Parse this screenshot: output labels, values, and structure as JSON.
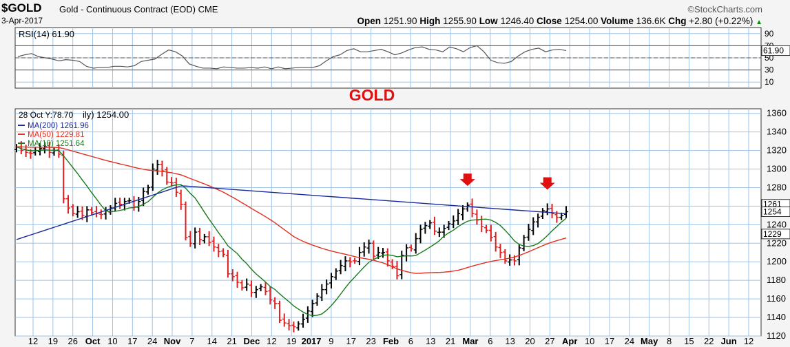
{
  "header": {
    "symbol": "$GOLD",
    "description": "Gold - Continuous Contract (EOD)",
    "exchange": "CME",
    "date": "3-Apr-2017",
    "brand": "©StockCharts.com",
    "open_label": "Open",
    "open": "1251.90",
    "high_label": "High",
    "high": "1255.90",
    "low_label": "Low",
    "low": "1246.40",
    "close_label": "Close",
    "close": "1254.00",
    "volume_label": "Volume",
    "volume": "136.6K",
    "chg_label": "Chg",
    "chg": "+2.80 (+0.22%)",
    "chg_icon": "up-triangle-icon"
  },
  "chart_data": {
    "type": "candlestick",
    "colors": {
      "up": "#000000",
      "down": "#e02020",
      "ma200": "#1a2a9a",
      "ma50": "#e03020",
      "ma10": "#1a7a1a",
      "rsi": "#555555",
      "rsi_fill": "#c8b48c",
      "annotation": "#e01010",
      "grid": "#9ec3e6"
    },
    "rsi": {
      "label": "RSI(14) 61.90",
      "current": 61.9,
      "ylim": [
        0,
        100
      ],
      "levels": [
        70,
        30
      ],
      "center": 50,
      "ticks": [
        90,
        70,
        50,
        30,
        10
      ],
      "series": [
        52,
        55,
        57,
        52,
        50,
        48,
        45,
        47,
        46,
        44,
        36,
        33,
        34,
        34,
        36,
        36,
        35,
        37,
        44,
        46,
        48,
        56,
        63,
        60,
        53,
        40,
        36,
        33,
        33,
        32,
        35,
        34,
        33,
        33,
        34,
        33,
        35,
        32,
        35,
        32,
        33,
        34,
        34,
        34,
        37,
        45,
        52,
        55,
        62,
        65,
        60,
        60,
        62,
        64,
        60,
        55,
        58,
        63,
        67,
        68,
        64,
        63,
        60,
        68,
        65,
        60,
        67,
        70,
        60,
        46,
        42,
        41,
        44,
        53,
        60,
        64,
        66,
        60,
        63,
        64,
        62
      ]
    },
    "annotation": "GOLD",
    "price": {
      "current_label": "1254.00",
      "ylim": [
        1120,
        1365
      ],
      "ticks": [
        1360,
        1340,
        1320,
        1300,
        1280,
        1260,
        1240,
        1220,
        1200,
        1180,
        1160,
        1140,
        1120
      ],
      "tooltip": "28 Oct Y:78.70",
      "legend": [
        {
          "name": "MA(200) 1261.96",
          "value": 1261.96,
          "color": "#1a2a9a"
        },
        {
          "name": "MA(50) 1229.81",
          "value": 1229.81,
          "color": "#e03020"
        },
        {
          "name": "MA(10) 1251.64",
          "value": 1251.64,
          "color": "#1a7a1a"
        }
      ],
      "tags": [
        {
          "label": "1261",
          "value": 1262
        },
        {
          "label": "1254",
          "value": 1254
        },
        {
          "label": "1229",
          "value": 1230
        }
      ],
      "closes": [
        1324,
        1320,
        1318,
        1317,
        1320,
        1322,
        1324,
        1318,
        1320,
        1316,
        1268,
        1258,
        1252,
        1254,
        1250,
        1256,
        1253,
        1252,
        1251,
        1255,
        1258,
        1263,
        1262,
        1265,
        1266,
        1259,
        1265,
        1276,
        1280,
        1300,
        1305,
        1298,
        1286,
        1285,
        1275,
        1262,
        1226,
        1220,
        1232,
        1224,
        1227,
        1221,
        1216,
        1211,
        1208,
        1187,
        1184,
        1178,
        1172,
        1176,
        1167,
        1170,
        1173,
        1168,
        1159,
        1155,
        1137,
        1134,
        1131,
        1130,
        1133,
        1138,
        1147,
        1155,
        1163,
        1170,
        1176,
        1184,
        1190,
        1196,
        1201,
        1200,
        1201,
        1210,
        1216,
        1220,
        1206,
        1210,
        1210,
        1201,
        1195,
        1185,
        1207,
        1215,
        1214,
        1225,
        1235,
        1239,
        1242,
        1233,
        1232,
        1236,
        1241,
        1244,
        1252,
        1257,
        1261,
        1252,
        1245,
        1238,
        1234,
        1226,
        1216,
        1210,
        1201,
        1202,
        1201,
        1215,
        1226,
        1235,
        1243,
        1248,
        1255,
        1257,
        1252,
        1248,
        1250,
        1254
      ],
      "ma200": [
        1224,
        1261.96
      ],
      "ma50_end": 1229.81,
      "ma10_end": 1251.64,
      "markers": [
        {
          "index": 96,
          "label": "down-arrow-icon"
        },
        {
          "index": 113,
          "label": "down-arrow-icon"
        }
      ]
    },
    "x_ticks": [
      "12",
      "19",
      "26",
      "Oct",
      "10",
      "17",
      "24",
      "Nov",
      "7",
      "14",
      "21",
      "Dec",
      "12",
      "19",
      "2017",
      "9",
      "17",
      "23",
      "Feb",
      "6",
      "13",
      "21",
      "Mar",
      "6",
      "13",
      "20",
      "27",
      "Apr",
      "10",
      "17",
      "24",
      "May",
      "8",
      "15",
      "22",
      "Jun",
      "12"
    ],
    "x_month_ticks": [
      "Oct",
      "Nov",
      "Dec",
      "2017",
      "Feb",
      "Mar",
      "Apr",
      "May",
      "Jun"
    ]
  }
}
